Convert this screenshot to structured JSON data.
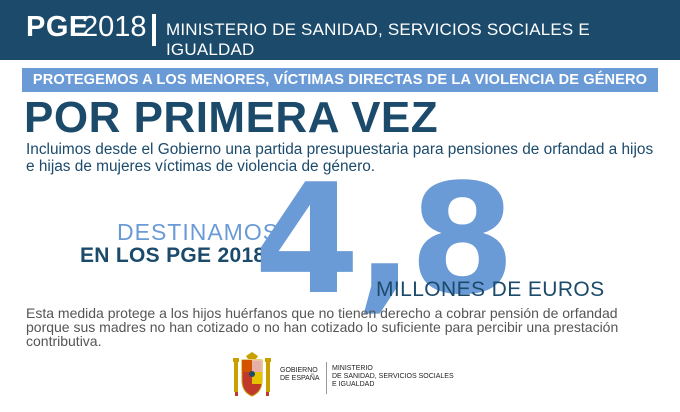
{
  "header": {
    "pge": "PGE",
    "year": "2018",
    "ministry": "MINISTERIO DE SANIDAD, SERVICIOS SOCIALES E IGUALDAD"
  },
  "banner": "PROTEGEMOS A LOS MENORES, VÍCTIMAS DIRECTAS DE LA VIOLENCIA DE GÉNERO",
  "headline": "POR PRIMERA VEZ",
  "intro": "Incluimos desde el Gobierno una partida presupuestaria para pensiones de orfandad a hijos e hijas de mujeres víctimas de violencia de género.",
  "figure": {
    "line1": "DESTINAMOS",
    "line2": "EN LOS PGE 2018",
    "amount": "4,8",
    "unit": "MILLONES DE EUROS"
  },
  "measure": "Esta medida protege a los hijos huérfanos que no tienen derecho a cobrar pensión de orfandad porque sus madres no han cotizado o no han cotizado lo suficiente para percibir una prestación contributiva.",
  "footer": {
    "gobierno_line1": "GOBIERNO",
    "gobierno_line2": "DE ESPAÑA",
    "ministry_line1": "MINISTERIO",
    "ministry_line2": "DE SANIDAD, SERVICIOS SOCIALES",
    "ministry_line3": "E IGUALDAD"
  },
  "colors": {
    "navy": "#1b4a6b",
    "light_blue": "#6a9bd6",
    "gray_text": "#555555"
  }
}
